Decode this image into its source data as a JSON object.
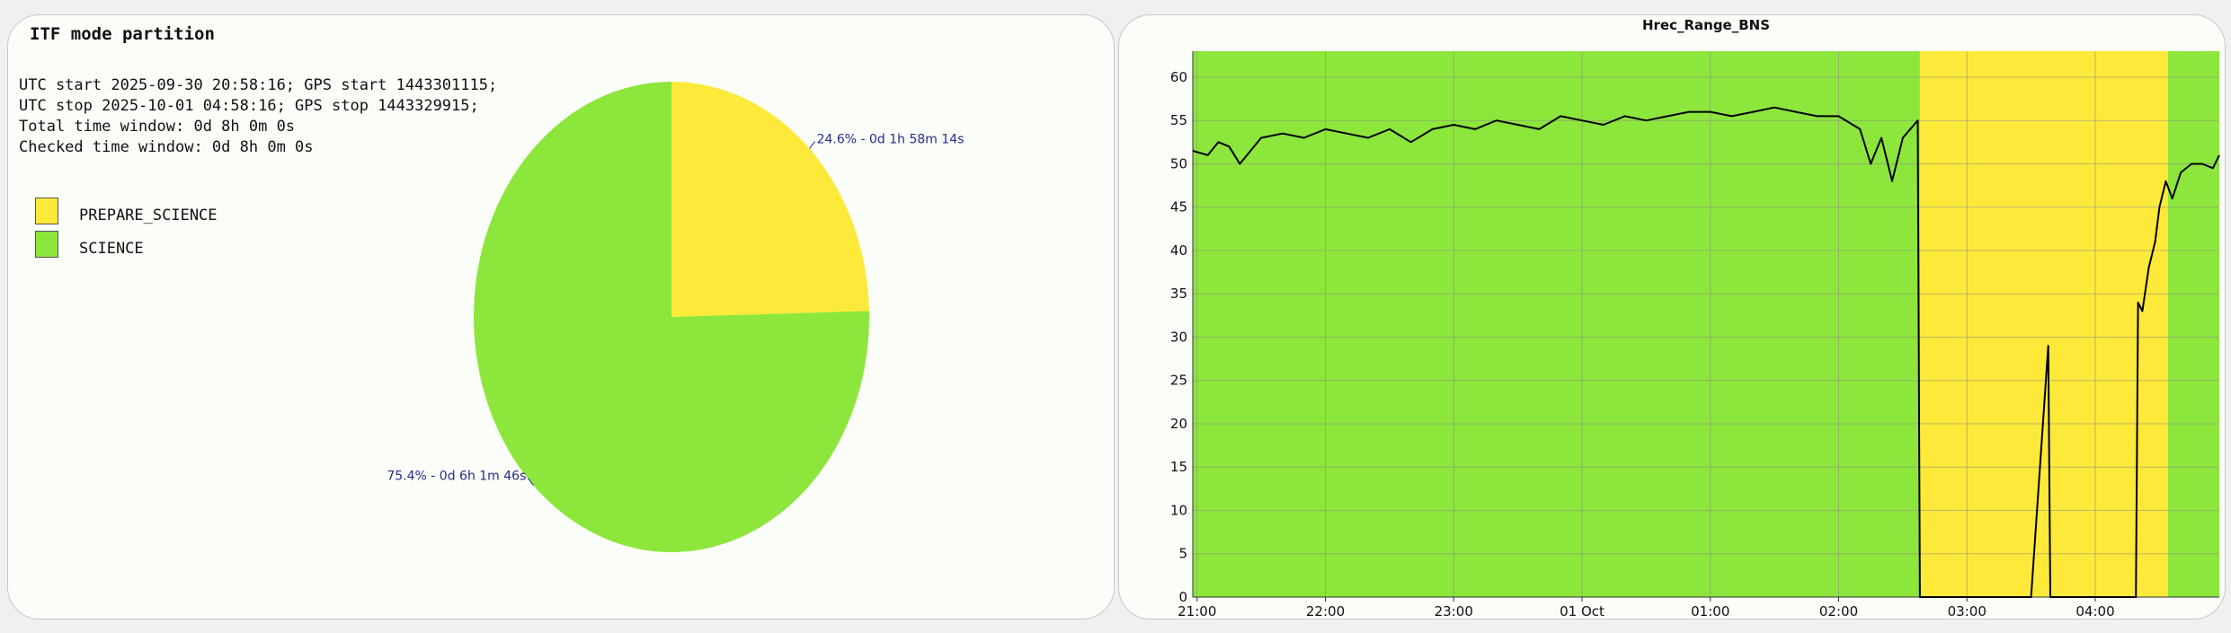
{
  "colors": {
    "prepare_science": "#fde93a",
    "science": "#8de63c",
    "label_text": "#2a2a8a",
    "line": "#000000"
  },
  "pie_panel": {
    "title": "ITF mode partition",
    "info_lines": [
      "UTC start 2025-09-30 20:58:16; GPS start 1443301115;",
      "UTC stop 2025-10-01 04:58:16; GPS stop 1443329915;",
      "Total time window: 0d 8h 0m 0s",
      "Checked time window: 0d 8h 0m 0s"
    ],
    "legend": [
      {
        "label": "PREPARE_SCIENCE",
        "color": "#fde93a"
      },
      {
        "label": "SCIENCE",
        "color": "#8de63c"
      }
    ]
  },
  "chart_data": [
    {
      "type": "pie",
      "title": "ITF mode partition",
      "slices": [
        {
          "name": "PREPARE_SCIENCE",
          "percent": 24.6,
          "label": "24.6% - 0d 1h 58m 14s",
          "color": "#fde93a"
        },
        {
          "name": "SCIENCE",
          "percent": 75.4,
          "label": "75.4% - 0d 6h 1m 46s",
          "color": "#8de63c"
        }
      ]
    },
    {
      "type": "line",
      "title": "Hrec_Range_BNS",
      "xlabel": "",
      "ylabel": "",
      "x_ticks": [
        "21:00",
        "22:00",
        "23:00",
        "01 Oct",
        "01:00",
        "02:00",
        "03:00",
        "04:00"
      ],
      "x_range": [
        "20:58",
        "04:58"
      ],
      "ylim": [
        0,
        63
      ],
      "y_ticks": [
        0,
        5,
        10,
        15,
        20,
        25,
        30,
        35,
        40,
        45,
        50,
        55,
        60
      ],
      "grid": true,
      "background_bands": [
        {
          "from": "20:58",
          "to": "02:38",
          "mode": "SCIENCE",
          "color": "#8de63c"
        },
        {
          "from": "02:38",
          "to": "04:34",
          "mode": "PREPARE_SCIENCE",
          "color": "#fde93a"
        },
        {
          "from": "04:34",
          "to": "04:58",
          "mode": "SCIENCE",
          "color": "#8de63c"
        }
      ],
      "series": [
        {
          "x": [
            "20:58",
            "21:05",
            "21:10",
            "21:15",
            "21:20",
            "21:30",
            "21:40",
            "21:50",
            "22:00",
            "22:10",
            "22:20",
            "22:30",
            "22:40",
            "22:50",
            "23:00",
            "23:10",
            "23:20",
            "23:30",
            "23:40",
            "23:50",
            "00:00",
            "00:10",
            "00:20",
            "00:30",
            "00:40",
            "00:50",
            "01:00",
            "01:10",
            "01:20",
            "01:30",
            "01:40",
            "01:50",
            "02:00",
            "02:10",
            "02:15",
            "02:20",
            "02:25",
            "02:30",
            "02:37",
            "02:38",
            "02:39",
            "03:00",
            "03:30",
            "03:38",
            "03:39",
            "03:40",
            "04:00",
            "04:19",
            "04:20",
            "04:22",
            "04:25",
            "04:28",
            "04:30",
            "04:33",
            "04:36",
            "04:40",
            "04:45",
            "04:50",
            "04:55",
            "04:58"
          ],
          "y": [
            51.5,
            51,
            52.5,
            52,
            50,
            53,
            53.5,
            53,
            54,
            53.5,
            53,
            54,
            52.5,
            54,
            54.5,
            54,
            55,
            54.5,
            54,
            55.5,
            55,
            54.5,
            55.5,
            55,
            55.5,
            56,
            56,
            55.5,
            56,
            56.5,
            56,
            55.5,
            55.5,
            54,
            50,
            53,
            48,
            53,
            55,
            0,
            0,
            0,
            0,
            29,
            0,
            0,
            0,
            0,
            34,
            33,
            38,
            41,
            45,
            48,
            46,
            49,
            50,
            50,
            49.5,
            51
          ]
        }
      ]
    }
  ]
}
